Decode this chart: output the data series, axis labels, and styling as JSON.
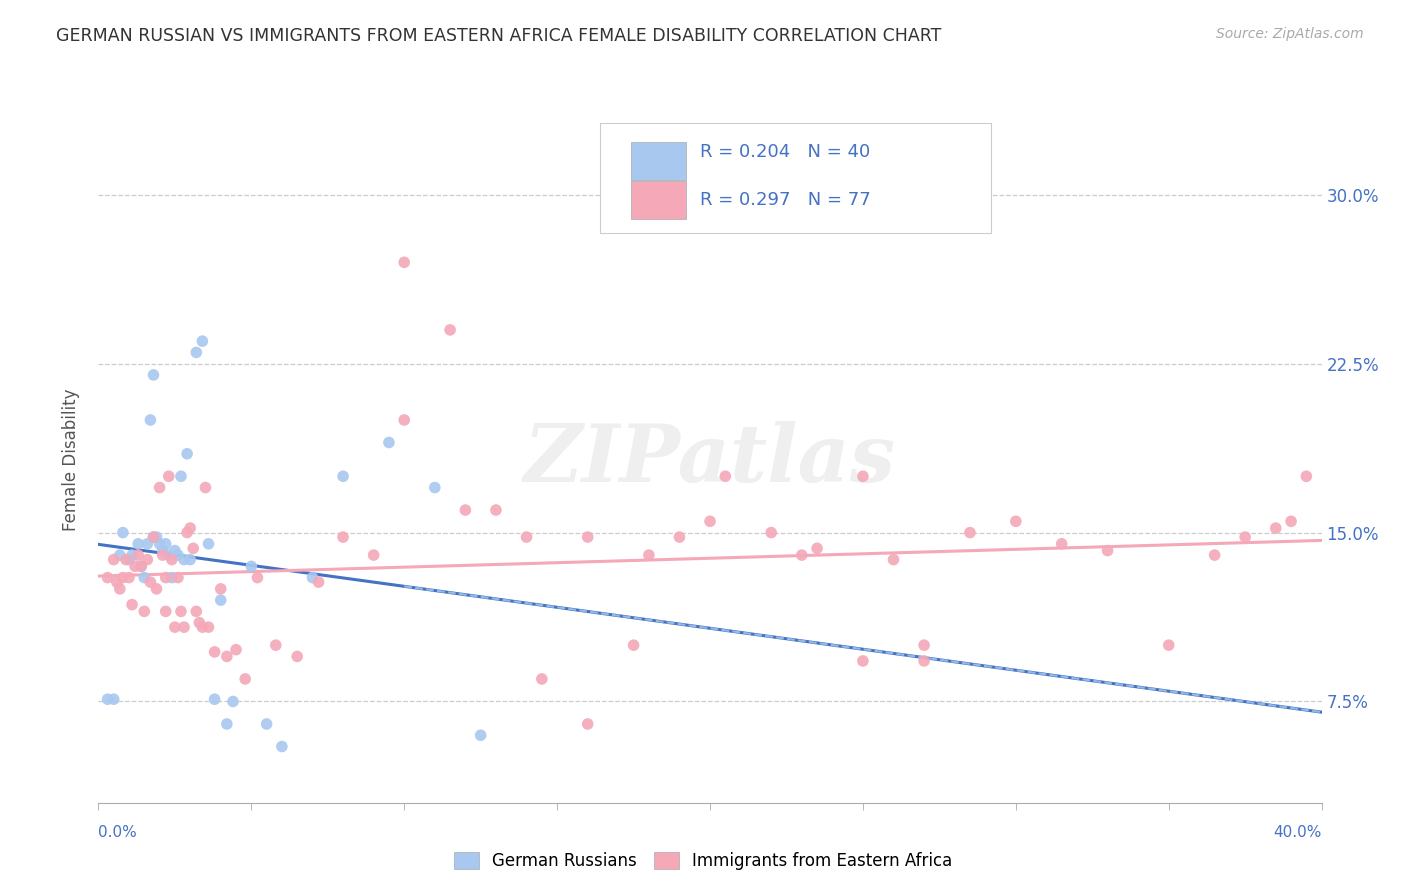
{
  "title": "GERMAN RUSSIAN VS IMMIGRANTS FROM EASTERN AFRICA FEMALE DISABILITY CORRELATION CHART",
  "source": "Source: ZipAtlas.com",
  "ylabel": "Female Disability",
  "y_ticks": [
    0.075,
    0.15,
    0.225,
    0.3
  ],
  "y_tick_labels": [
    "7.5%",
    "15.0%",
    "22.5%",
    "30.0%"
  ],
  "x_range": [
    0.0,
    0.4
  ],
  "y_range": [
    0.03,
    0.335
  ],
  "legend_blue_R": "R = 0.204",
  "legend_blue_N": "N = 40",
  "legend_pink_R": "R = 0.297",
  "legend_pink_N": "N = 77",
  "color_blue": "#a8c8f0",
  "color_pink": "#f4a8b8",
  "color_blue_text": "#4472c4",
  "color_pink_text": "#4472c4",
  "color_N_text": "#4472c4",
  "trendline_blue_color": "#4472c4",
  "trendline_pink_color": "#f4a8b8",
  "blue_x": [
    0.003,
    0.005,
    0.007,
    0.008,
    0.01,
    0.011,
    0.013,
    0.014,
    0.015,
    0.016,
    0.017,
    0.018,
    0.018,
    0.019,
    0.02,
    0.021,
    0.022,
    0.023,
    0.024,
    0.025,
    0.026,
    0.027,
    0.028,
    0.029,
    0.03,
    0.032,
    0.034,
    0.036,
    0.038,
    0.04,
    0.042,
    0.044,
    0.05,
    0.055,
    0.06,
    0.07,
    0.08,
    0.095,
    0.11,
    0.125
  ],
  "blue_y": [
    0.076,
    0.076,
    0.14,
    0.15,
    0.138,
    0.14,
    0.145,
    0.135,
    0.13,
    0.145,
    0.2,
    0.22,
    0.148,
    0.148,
    0.145,
    0.142,
    0.145,
    0.14,
    0.13,
    0.142,
    0.14,
    0.175,
    0.138,
    0.185,
    0.138,
    0.23,
    0.235,
    0.145,
    0.076,
    0.12,
    0.065,
    0.075,
    0.135,
    0.065,
    0.055,
    0.13,
    0.175,
    0.19,
    0.17,
    0.06
  ],
  "pink_x": [
    0.003,
    0.005,
    0.006,
    0.007,
    0.008,
    0.009,
    0.01,
    0.011,
    0.012,
    0.013,
    0.014,
    0.015,
    0.016,
    0.017,
    0.018,
    0.019,
    0.02,
    0.021,
    0.022,
    0.022,
    0.023,
    0.024,
    0.025,
    0.026,
    0.027,
    0.028,
    0.029,
    0.03,
    0.031,
    0.032,
    0.033,
    0.034,
    0.035,
    0.036,
    0.038,
    0.04,
    0.042,
    0.045,
    0.048,
    0.052,
    0.058,
    0.065,
    0.072,
    0.08,
    0.09,
    0.1,
    0.115,
    0.13,
    0.145,
    0.16,
    0.175,
    0.19,
    0.205,
    0.22,
    0.235,
    0.25,
    0.26,
    0.27,
    0.285,
    0.3,
    0.315,
    0.33,
    0.35,
    0.365,
    0.375,
    0.385,
    0.39,
    0.395,
    0.27,
    0.25,
    0.23,
    0.2,
    0.18,
    0.16,
    0.14,
    0.12,
    0.1
  ],
  "pink_y": [
    0.13,
    0.138,
    0.128,
    0.125,
    0.13,
    0.138,
    0.13,
    0.118,
    0.135,
    0.14,
    0.135,
    0.115,
    0.138,
    0.128,
    0.148,
    0.125,
    0.17,
    0.14,
    0.13,
    0.115,
    0.175,
    0.138,
    0.108,
    0.13,
    0.115,
    0.108,
    0.15,
    0.152,
    0.143,
    0.115,
    0.11,
    0.108,
    0.17,
    0.108,
    0.097,
    0.125,
    0.095,
    0.098,
    0.085,
    0.13,
    0.1,
    0.095,
    0.128,
    0.148,
    0.14,
    0.27,
    0.24,
    0.16,
    0.085,
    0.065,
    0.1,
    0.148,
    0.175,
    0.15,
    0.143,
    0.175,
    0.138,
    0.1,
    0.15,
    0.155,
    0.145,
    0.142,
    0.1,
    0.14,
    0.148,
    0.152,
    0.155,
    0.175,
    0.093,
    0.093,
    0.14,
    0.155,
    0.14,
    0.148,
    0.148,
    0.16,
    0.2
  ]
}
